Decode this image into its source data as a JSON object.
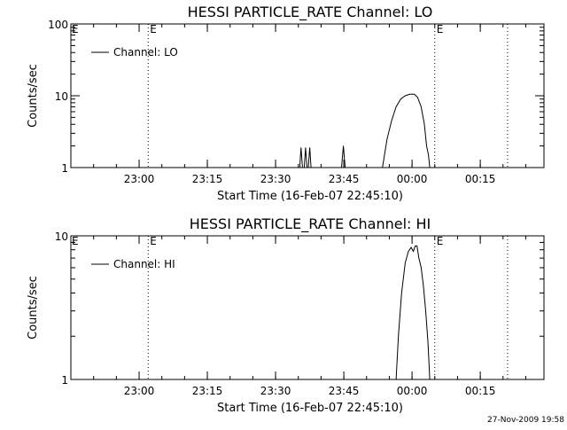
{
  "timestamp": "27-Nov-2009 19:58",
  "colors": {
    "background": "#ffffff",
    "ink": "#000000"
  },
  "chart_data": [
    {
      "type": "line",
      "title": "HESSI PARTICLE_RATE Channel: LO",
      "xlabel": "Start Time (16-Feb-07 22:45:10)",
      "ylabel": "Counts/sec",
      "yscale": "log",
      "ylim": [
        1,
        100
      ],
      "xlim": [
        "22:45",
        "00:29"
      ],
      "xticks": [
        "23:00",
        "23:15",
        "23:30",
        "23:45",
        "00:00",
        "00:15"
      ],
      "yticks": [
        "1",
        "10",
        "100"
      ],
      "legend": {
        "position": "top-left",
        "label": "Channel: LO"
      },
      "markers": [
        {
          "time": "23:02",
          "label": "E"
        },
        {
          "time": "00:05",
          "label": "E"
        },
        {
          "time": "00:21",
          "label": ""
        }
      ],
      "series": [
        {
          "name": "Channel: LO",
          "points": [
            [
              "23:35.3",
              1
            ],
            [
              "23:35.6",
              1.9
            ],
            [
              "23:35.9",
              1
            ],
            [
              "23:36.3",
              1
            ],
            [
              "23:36.6",
              1.9
            ],
            [
              "23:36.9",
              1
            ],
            [
              "23:37.2",
              1
            ],
            [
              "23:37.5",
              1.9
            ],
            [
              "23:37.8",
              1
            ],
            [
              "23:44.5",
              1
            ],
            [
              "23:44.9",
              2
            ],
            [
              "23:45.3",
              1
            ],
            [
              "23:53.5",
              1
            ],
            [
              "23:54.5",
              2.5
            ],
            [
              "23:55.5",
              4.5
            ],
            [
              "23:56.5",
              7
            ],
            [
              "23:57.5",
              9
            ],
            [
              "23:58.5",
              10
            ],
            [
              "23:59.5",
              10.5
            ],
            [
              "00:00.5",
              10.5
            ],
            [
              "00:01.2",
              9.5
            ],
            [
              "00:02",
              7
            ],
            [
              "00:02.7",
              4
            ],
            [
              "00:03.2",
              2
            ],
            [
              "00:03.6",
              1.5
            ],
            [
              "00:03.9",
              1
            ]
          ]
        }
      ]
    },
    {
      "type": "line",
      "title": "HESSI PARTICLE_RATE Channel: HI",
      "xlabel": "Start Time (16-Feb-07 22:45:10)",
      "ylabel": "Counts/sec",
      "yscale": "log",
      "ylim": [
        1,
        10
      ],
      "xlim": [
        "22:45",
        "00:29"
      ],
      "xticks": [
        "23:00",
        "23:15",
        "23:30",
        "23:45",
        "00:00",
        "00:15"
      ],
      "yticks": [
        "1",
        "10"
      ],
      "legend": {
        "position": "top-left",
        "label": "Channel: HI"
      },
      "markers": [
        {
          "time": "23:02",
          "label": "E"
        },
        {
          "time": "00:05",
          "label": "E"
        },
        {
          "time": "00:21",
          "label": ""
        }
      ],
      "series": [
        {
          "name": "Channel: HI",
          "points": [
            [
              "23:56.5",
              1
            ],
            [
              "23:57",
              2
            ],
            [
              "23:57.7",
              4
            ],
            [
              "23:58.5",
              6.5
            ],
            [
              "23:59.2",
              7.8
            ],
            [
              "23:59.8",
              8.3
            ],
            [
              "00:00.3",
              7.8
            ],
            [
              "00:00.7",
              8.5
            ],
            [
              "00:01.1",
              8.5
            ],
            [
              "00:01.5",
              7
            ],
            [
              "00:02",
              6
            ],
            [
              "00:02.5",
              4.5
            ],
            [
              "00:03",
              3
            ],
            [
              "00:03.5",
              1.8
            ],
            [
              "00:03.9",
              1
            ]
          ]
        }
      ]
    }
  ]
}
